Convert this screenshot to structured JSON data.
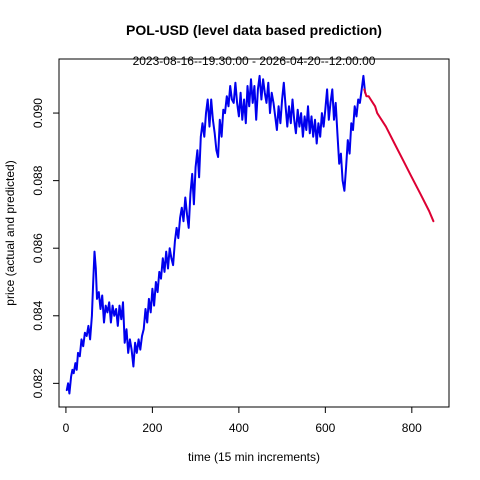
{
  "chart_data": {
    "type": "line",
    "title": "POL-USD (level data based prediction)",
    "subtitle": "2023-08-16--19:30:00  -  2026-04-20--12:00:00",
    "xlabel": "time (15 min increments)",
    "ylabel": "price (actual and predicted)",
    "xlim": [
      -16,
      886
    ],
    "ylim": [
      0.0813,
      0.0916
    ],
    "x_ticks": [
      0,
      200,
      400,
      600,
      800
    ],
    "y_ticks": [
      0.082,
      0.084,
      0.086,
      0.088,
      0.09
    ],
    "grid": false,
    "colors": {
      "actual": "#0000ee",
      "predicted": "#dd0033"
    },
    "series": [
      {
        "role": "actual",
        "points": [
          [
            2,
            0.0818
          ],
          [
            5,
            0.082
          ],
          [
            8,
            0.0817
          ],
          [
            12,
            0.0822
          ],
          [
            15,
            0.0824
          ],
          [
            18,
            0.0823
          ],
          [
            22,
            0.0826
          ],
          [
            25,
            0.0824
          ],
          [
            28,
            0.0829
          ],
          [
            32,
            0.0828
          ],
          [
            36,
            0.0833
          ],
          [
            40,
            0.0831
          ],
          [
            44,
            0.0835
          ],
          [
            48,
            0.0834
          ],
          [
            52,
            0.0837
          ],
          [
            56,
            0.0833
          ],
          [
            60,
            0.084
          ],
          [
            63,
            0.085
          ],
          [
            66,
            0.0859
          ],
          [
            69,
            0.0854
          ],
          [
            72,
            0.0845
          ],
          [
            76,
            0.0847
          ],
          [
            80,
            0.0842
          ],
          [
            84,
            0.0846
          ],
          [
            88,
            0.0838
          ],
          [
            92,
            0.0843
          ],
          [
            96,
            0.0841
          ],
          [
            100,
            0.0844
          ],
          [
            104,
            0.0838
          ],
          [
            108,
            0.0843
          ],
          [
            112,
            0.084
          ],
          [
            116,
            0.0842
          ],
          [
            120,
            0.0837
          ],
          [
            124,
            0.0843
          ],
          [
            128,
            0.0839
          ],
          [
            132,
            0.0844
          ],
          [
            136,
            0.0832
          ],
          [
            140,
            0.0836
          ],
          [
            144,
            0.0829
          ],
          [
            148,
            0.0833
          ],
          [
            152,
            0.083
          ],
          [
            156,
            0.0825
          ],
          [
            160,
            0.0832
          ],
          [
            164,
            0.0829
          ],
          [
            168,
            0.0833
          ],
          [
            172,
            0.083
          ],
          [
            176,
            0.0834
          ],
          [
            180,
            0.0836
          ],
          [
            184,
            0.0842
          ],
          [
            188,
            0.0838
          ],
          [
            192,
            0.0845
          ],
          [
            196,
            0.0841
          ],
          [
            200,
            0.0848
          ],
          [
            204,
            0.0843
          ],
          [
            208,
            0.085
          ],
          [
            212,
            0.0847
          ],
          [
            216,
            0.0853
          ],
          [
            220,
            0.0851
          ],
          [
            224,
            0.0857
          ],
          [
            228,
            0.0853
          ],
          [
            232,
            0.0859
          ],
          [
            236,
            0.0854
          ],
          [
            240,
            0.086
          ],
          [
            244,
            0.0857
          ],
          [
            248,
            0.0855
          ],
          [
            252,
            0.0862
          ],
          [
            256,
            0.0866
          ],
          [
            260,
            0.0863
          ],
          [
            264,
            0.0869
          ],
          [
            268,
            0.0872
          ],
          [
            272,
            0.0868
          ],
          [
            276,
            0.0875
          ],
          [
            280,
            0.087
          ],
          [
            284,
            0.0866
          ],
          [
            288,
            0.0876
          ],
          [
            292,
            0.0882
          ],
          [
            296,
            0.0873
          ],
          [
            300,
            0.0884
          ],
          [
            304,
            0.0889
          ],
          [
            308,
            0.0881
          ],
          [
            312,
            0.0893
          ],
          [
            316,
            0.0897
          ],
          [
            320,
            0.0893
          ],
          [
            324,
            0.09
          ],
          [
            328,
            0.0904
          ],
          [
            332,
            0.0896
          ],
          [
            336,
            0.0904
          ],
          [
            340,
            0.0898
          ],
          [
            344,
            0.0894
          ],
          [
            348,
            0.0889
          ],
          [
            352,
            0.0887
          ],
          [
            356,
            0.0898
          ],
          [
            360,
            0.0893
          ],
          [
            364,
            0.0901
          ],
          [
            368,
            0.09
          ],
          [
            372,
            0.0905
          ],
          [
            376,
            0.0902
          ],
          [
            380,
            0.0908
          ],
          [
            384,
            0.0904
          ],
          [
            388,
            0.0903
          ],
          [
            392,
            0.0909
          ],
          [
            396,
            0.0903
          ],
          [
            400,
            0.0899
          ],
          [
            404,
            0.0906
          ],
          [
            408,
            0.0898
          ],
          [
            412,
            0.0904
          ],
          [
            416,
            0.0897
          ],
          [
            420,
            0.0908
          ],
          [
            424,
            0.0902
          ],
          [
            428,
            0.091
          ],
          [
            432,
            0.0903
          ],
          [
            436,
            0.0908
          ],
          [
            440,
            0.0898
          ],
          [
            444,
            0.0907
          ],
          [
            448,
            0.0911
          ],
          [
            452,
            0.0904
          ],
          [
            456,
            0.091
          ],
          [
            460,
            0.0906
          ],
          [
            464,
            0.0903
          ],
          [
            468,
            0.0909
          ],
          [
            472,
            0.09
          ],
          [
            476,
            0.0906
          ],
          [
            480,
            0.0903
          ],
          [
            484,
            0.0899
          ],
          [
            488,
            0.0895
          ],
          [
            492,
            0.0902
          ],
          [
            496,
            0.0897
          ],
          [
            500,
            0.0904
          ],
          [
            504,
            0.0909
          ],
          [
            508,
            0.0902
          ],
          [
            512,
            0.0896
          ],
          [
            516,
            0.0902
          ],
          [
            520,
            0.0897
          ],
          [
            524,
            0.0904
          ],
          [
            528,
            0.0898
          ],
          [
            532,
            0.0894
          ],
          [
            536,
            0.0901
          ],
          [
            540,
            0.0896
          ],
          [
            544,
            0.09
          ],
          [
            548,
            0.0893
          ],
          [
            552,
            0.0899
          ],
          [
            556,
            0.0895
          ],
          [
            560,
            0.0902
          ],
          [
            564,
            0.0894
          ],
          [
            568,
            0.0899
          ],
          [
            572,
            0.0893
          ],
          [
            576,
            0.0898
          ],
          [
            580,
            0.0891
          ],
          [
            584,
            0.0897
          ],
          [
            588,
            0.0893
          ],
          [
            592,
            0.09
          ],
          [
            596,
            0.0896
          ],
          [
            600,
            0.0901
          ],
          [
            604,
            0.0907
          ],
          [
            608,
            0.0898
          ],
          [
            612,
            0.0903
          ],
          [
            616,
            0.0907
          ],
          [
            620,
            0.0898
          ],
          [
            624,
            0.0903
          ],
          [
            628,
            0.0894
          ],
          [
            632,
            0.0885
          ],
          [
            636,
            0.0888
          ],
          [
            640,
            0.088
          ],
          [
            644,
            0.0877
          ],
          [
            648,
            0.0884
          ],
          [
            652,
            0.0892
          ],
          [
            656,
            0.0888
          ],
          [
            660,
            0.0897
          ],
          [
            664,
            0.0895
          ],
          [
            668,
            0.0902
          ],
          [
            672,
            0.0899
          ],
          [
            676,
            0.0904
          ],
          [
            680,
            0.0903
          ],
          [
            684,
            0.0907
          ],
          [
            688,
            0.0911
          ],
          [
            692,
            0.0906
          ]
        ]
      },
      {
        "role": "predicted",
        "points": [
          [
            690,
            0.0907
          ],
          [
            695,
            0.0905
          ],
          [
            700,
            0.0905
          ],
          [
            705,
            0.0904
          ],
          [
            710,
            0.0903
          ],
          [
            715,
            0.0902
          ],
          [
            720,
            0.09
          ],
          [
            740,
            0.0896
          ],
          [
            760,
            0.0891
          ],
          [
            780,
            0.0886
          ],
          [
            800,
            0.0881
          ],
          [
            820,
            0.0876
          ],
          [
            840,
            0.0871
          ],
          [
            850,
            0.0868
          ]
        ]
      }
    ]
  }
}
